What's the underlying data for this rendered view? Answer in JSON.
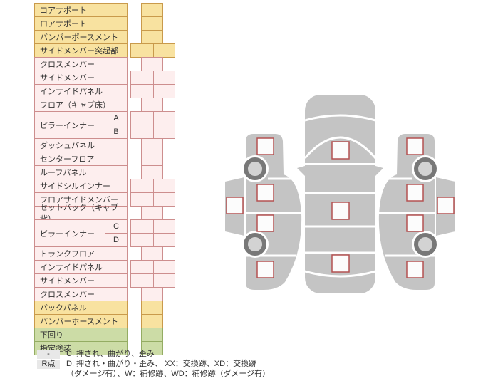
{
  "colors": {
    "yellow_fill": "#f8e2a0",
    "yellow_border": "#c99a4b",
    "pink_fill": "#fdeeee",
    "pink_border": "#cd8e8e",
    "green_fill": "#ccdca6",
    "green_border": "#94ac63",
    "text": "#333333",
    "legend_box": "#e8e8e8",
    "car_gray": "#c4c4c4",
    "wheel_ring": "#787878",
    "wheel_hub": "#d3d3d3",
    "marker_border": "#b35252",
    "marker_fill": "#fcfcfc"
  },
  "table": {
    "rows": [
      {
        "label": "コアサポート",
        "color": "yellow",
        "cell": "narrow"
      },
      {
        "label": "ロアサポート",
        "color": "yellow",
        "cell": "narrow"
      },
      {
        "label": "バンパーポースメント",
        "color": "yellow",
        "cell": "narrow"
      },
      {
        "label": "サイドメンバー突起部",
        "color": "yellow",
        "cell": "wide"
      },
      {
        "label": "クロスメンバー",
        "color": "pink",
        "cell": "narrow"
      },
      {
        "label": "サイドメンバー",
        "color": "pink",
        "cell": "wide"
      },
      {
        "label": "インサイドパネル",
        "color": "pink",
        "cell": "wide"
      },
      {
        "label": "フロア（キャブ床）",
        "color": "pink",
        "cell": "narrow"
      },
      {
        "label": "ピラーインナー",
        "sub": "A",
        "span": 2,
        "color": "pink",
        "cell": "wide"
      },
      {
        "label": "",
        "sub": "B",
        "continuation": true,
        "color": "pink",
        "cell": "wide"
      },
      {
        "label": "ダッシュパネル",
        "color": "pink",
        "cell": "narrow"
      },
      {
        "label": "センターフロア",
        "color": "pink",
        "cell": "narrow"
      },
      {
        "label": "ルーフパネル",
        "color": "pink",
        "cell": "narrow"
      },
      {
        "label": "サイドシルインナー",
        "color": "pink",
        "cell": "wide"
      },
      {
        "label": "フロアサイドメンバー",
        "color": "pink",
        "cell": "wide"
      },
      {
        "label": "セットバック（キャブ背）",
        "color": "pink",
        "cell": "narrow"
      },
      {
        "label": "ピラーインナー",
        "sub": "C",
        "span": 2,
        "color": "pink",
        "cell": "wide"
      },
      {
        "label": "",
        "sub": "D",
        "continuation": true,
        "color": "pink",
        "cell": "wide"
      },
      {
        "label": "トランクフロア",
        "color": "pink",
        "cell": "narrow"
      },
      {
        "label": "インサイドパネル",
        "color": "pink",
        "cell": "wide"
      },
      {
        "label": "サイドメンバー",
        "color": "pink",
        "cell": "wide"
      },
      {
        "label": "クロスメンバー",
        "color": "pink",
        "cell": "narrow"
      },
      {
        "label": "バックパネル",
        "color": "yellow",
        "cell": "narrow"
      },
      {
        "label": "バンパーホースメント",
        "color": "yellow",
        "cell": "narrow"
      },
      {
        "label": "下回り",
        "color": "green",
        "cell": "narrow"
      },
      {
        "label": "指定塗装",
        "color": "green",
        "cell": "narrow"
      }
    ]
  },
  "legend": {
    "rows": [
      {
        "key": "-",
        "text": "U: 押され、曲がり、歪み"
      },
      {
        "key": "R点",
        "text": "D: 押され・曲がり・歪み、 XX：交換跡、XD：交換跡"
      },
      {
        "key": "",
        "text": "（ダメージ有）、W：補修跡、WD：補修跡（ダメージ有）"
      }
    ]
  },
  "diagram": {
    "views": [
      {
        "name": "left-side-view",
        "markers": 5,
        "wheels": 2
      },
      {
        "name": "top-view",
        "markers": 3,
        "wheels": 0
      },
      {
        "name": "right-side-view",
        "markers": 5,
        "wheels": 2
      }
    ]
  }
}
